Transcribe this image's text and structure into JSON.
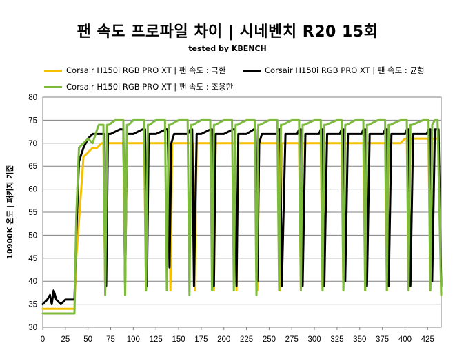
{
  "chart_data": {
    "type": "line",
    "title": "팬 속도 프로파일 차이 | 시네벤치 R20 15회",
    "subtitle": "tested by KBENCH",
    "xlabel": "",
    "ylabel": "10900K 온도 | 패키지 기준",
    "xlim": [
      0,
      440
    ],
    "ylim": [
      30,
      80
    ],
    "x_ticks": [
      "0",
      "25",
      "50",
      "75",
      "100",
      "125",
      "150",
      "175",
      "200",
      "225",
      "250",
      "275",
      "300",
      "325",
      "350",
      "375",
      "400",
      "425"
    ],
    "y_ticks": [
      "30",
      "35",
      "40",
      "45",
      "50",
      "55",
      "60",
      "65",
      "70",
      "75",
      "80"
    ],
    "grid": "horizontal",
    "legend_position": "top",
    "series": [
      {
        "name": "Corsair H150i RGB PRO XT | 팬 속도 : 극한",
        "color": "#F5C000",
        "x": [
          0,
          33,
          35,
          37,
          40,
          45,
          50,
          55,
          60,
          65,
          67,
          69,
          71,
          80,
          87,
          89,
          91,
          93,
          100,
          110,
          112,
          114,
          116,
          125,
          137,
          139,
          141,
          143,
          150,
          160,
          164,
          166,
          168,
          170,
          180,
          185,
          187,
          189,
          191,
          200,
          210,
          212,
          214,
          216,
          225,
          233,
          235,
          237,
          239,
          250,
          258,
          260,
          262,
          264,
          275,
          281,
          283,
          285,
          287,
          300,
          305,
          307,
          309,
          311,
          325,
          328,
          330,
          332,
          334,
          345,
          352,
          354,
          356,
          358,
          370,
          376,
          378,
          380,
          382,
          395,
          400,
          402,
          404,
          406,
          420,
          424,
          426,
          428,
          430,
          433,
          437,
          440
        ],
        "values": [
          34,
          34,
          34,
          45,
          53,
          67,
          68,
          69,
          69,
          70,
          70,
          38,
          70,
          70,
          70,
          70,
          38,
          70,
          70,
          70,
          70,
          38,
          70,
          70,
          70,
          70,
          38,
          70,
          70,
          70,
          70,
          70,
          38,
          70,
          70,
          70,
          70,
          38,
          70,
          70,
          70,
          70,
          38,
          70,
          70,
          70,
          70,
          38,
          70,
          70,
          70,
          70,
          38,
          70,
          70,
          70,
          70,
          38,
          70,
          70,
          70,
          70,
          38,
          70,
          70,
          70,
          70,
          38,
          70,
          70,
          70,
          70,
          38,
          70,
          70,
          70,
          70,
          38,
          70,
          70,
          71,
          71,
          38,
          71,
          71,
          71,
          71,
          38,
          71,
          71,
          71,
          37
        ]
      },
      {
        "name": "Corsair H150i RGB PRO XT | 팬 속도 : 균형",
        "color": "#000000",
        "x": [
          0,
          5,
          8,
          10,
          12,
          15,
          20,
          25,
          30,
          33,
          35,
          37,
          40,
          45,
          50,
          55,
          60,
          65,
          68,
          70,
          72,
          75,
          85,
          89,
          91,
          93,
          95,
          100,
          110,
          113,
          115,
          117,
          120,
          125,
          136,
          138,
          140,
          142,
          145,
          150,
          160,
          163,
          165,
          167,
          170,
          175,
          185,
          187,
          189,
          191,
          195,
          200,
          210,
          212,
          214,
          216,
          220,
          225,
          233,
          235,
          237,
          239,
          242,
          250,
          258,
          260,
          262,
          264,
          268,
          275,
          281,
          283,
          285,
          287,
          290,
          300,
          305,
          307,
          309,
          311,
          314,
          325,
          328,
          330,
          332,
          334,
          337,
          345,
          352,
          354,
          356,
          358,
          361,
          370,
          376,
          378,
          380,
          382,
          385,
          395,
          400,
          402,
          404,
          406,
          409,
          420,
          424,
          426,
          428,
          430,
          433,
          437,
          440
        ],
        "values": [
          35,
          36,
          37,
          35,
          38,
          36,
          35,
          36,
          36,
          36,
          36,
          50,
          66,
          69,
          71,
          72,
          72,
          72,
          72,
          39,
          72,
          72,
          73,
          73,
          39,
          72,
          72,
          72,
          73,
          73,
          39,
          72,
          72,
          72,
          73,
          73,
          43,
          70,
          72,
          72,
          72,
          73,
          73,
          39,
          72,
          72,
          73,
          73,
          39,
          72,
          72,
          72,
          73,
          73,
          39,
          72,
          72,
          72,
          73,
          73,
          40,
          70,
          72,
          72,
          72,
          73,
          73,
          39,
          72,
          72,
          72,
          73,
          73,
          39,
          72,
          72,
          72,
          73,
          73,
          39,
          72,
          72,
          72,
          73,
          73,
          40,
          72,
          72,
          72,
          73,
          73,
          39,
          72,
          72,
          72,
          73,
          73,
          39,
          72,
          72,
          72,
          73,
          73,
          39,
          72,
          72,
          72,
          73,
          73,
          40,
          73,
          73,
          39
        ]
      },
      {
        "name": "Corsair H150i RGB PRO XT | 팬 속도 : 조용한",
        "color": "#7DBB3C",
        "x": [
          0,
          33,
          35,
          37,
          40,
          45,
          50,
          55,
          60,
          62,
          65,
          67,
          69,
          71,
          73,
          80,
          87,
          89,
          91,
          93,
          95,
          100,
          110,
          112,
          114,
          116,
          118,
          125,
          133,
          135,
          137,
          139,
          141,
          150,
          158,
          160,
          162,
          164,
          166,
          175,
          183,
          185,
          187,
          189,
          191,
          200,
          207,
          209,
          211,
          213,
          215,
          225,
          232,
          234,
          236,
          238,
          240,
          250,
          257,
          259,
          261,
          263,
          265,
          275,
          281,
          283,
          285,
          287,
          289,
          300,
          305,
          307,
          309,
          311,
          313,
          325,
          328,
          330,
          332,
          334,
          336,
          345,
          352,
          354,
          356,
          358,
          360,
          370,
          376,
          378,
          380,
          382,
          384,
          395,
          400,
          402,
          404,
          406,
          408,
          420,
          424,
          426,
          428,
          430,
          433,
          436,
          440
        ],
        "values": [
          33,
          33,
          33,
          54,
          69,
          70,
          71,
          70,
          73,
          74,
          74,
          74,
          37,
          74,
          74,
          75,
          75,
          75,
          37,
          74,
          74,
          75,
          75,
          75,
          38,
          74,
          74,
          75,
          75,
          75,
          38,
          74,
          74,
          75,
          75,
          75,
          37,
          74,
          74,
          75,
          75,
          75,
          38,
          74,
          74,
          75,
          75,
          75,
          38,
          74,
          74,
          75,
          75,
          75,
          37,
          74,
          74,
          75,
          75,
          75,
          38,
          74,
          74,
          75,
          75,
          75,
          38,
          74,
          74,
          75,
          75,
          75,
          38,
          74,
          74,
          75,
          75,
          75,
          38,
          74,
          74,
          75,
          75,
          75,
          38,
          74,
          74,
          75,
          75,
          75,
          38,
          74,
          74,
          75,
          75,
          75,
          38,
          74,
          74,
          75,
          75,
          75,
          38,
          74,
          75,
          75,
          37
        ]
      }
    ]
  }
}
